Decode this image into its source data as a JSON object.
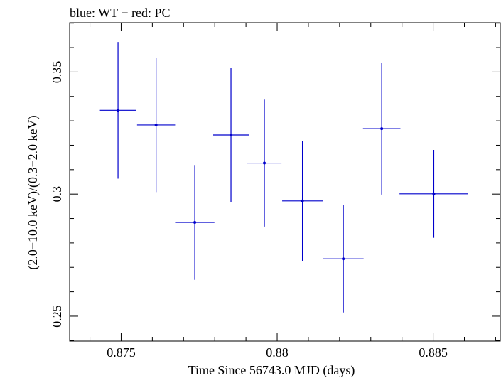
{
  "chart_data": {
    "type": "scatter",
    "title": "blue: WT − red: PC",
    "xlabel": "Time Since 56743.0 MJD (days)",
    "ylabel": "(2.0−10.0 keV)/(0.3−2.0 keV)",
    "xlim": [
      0.87335,
      0.88715
    ],
    "ylim": [
      0.2398,
      0.3702
    ],
    "x_ticks": [
      0.875,
      0.88,
      0.885
    ],
    "x_tick_labels": [
      "0.875",
      "0.88",
      "0.885"
    ],
    "y_ticks": [
      0.25,
      0.3,
      0.35
    ],
    "y_tick_labels": [
      "0.25",
      "0.3",
      "0.35"
    ],
    "grid": false,
    "colors": {
      "series": "#0000cc",
      "axes": "#000000"
    },
    "series": [
      {
        "points": [
          {
            "x": 0.8749,
            "y": 0.3343,
            "xerr": 0.00058,
            "yerr_lo": 0.028,
            "yerr_hi": 0.028
          },
          {
            "x": 0.87612,
            "y": 0.3283,
            "xerr": 0.00061,
            "yerr_lo": 0.0275,
            "yerr_hi": 0.0275
          },
          {
            "x": 0.87736,
            "y": 0.2884,
            "xerr": 0.00063,
            "yerr_lo": 0.0235,
            "yerr_hi": 0.0235
          },
          {
            "x": 0.87852,
            "y": 0.3242,
            "xerr": 0.00057,
            "yerr_lo": 0.0275,
            "yerr_hi": 0.0275
          },
          {
            "x": 0.87959,
            "y": 0.3127,
            "xerr": 0.00055,
            "yerr_lo": 0.026,
            "yerr_hi": 0.026
          },
          {
            "x": 0.88081,
            "y": 0.2972,
            "xerr": 0.00065,
            "yerr_lo": 0.0245,
            "yerr_hi": 0.0245
          },
          {
            "x": 0.88212,
            "y": 0.2735,
            "xerr": 0.00065,
            "yerr_lo": 0.022,
            "yerr_hi": 0.022
          },
          {
            "x": 0.88335,
            "y": 0.3268,
            "xerr": 0.0006,
            "yerr_lo": 0.027,
            "yerr_hi": 0.027
          },
          {
            "x": 0.88502,
            "y": 0.3001,
            "xerr": 0.0011,
            "yerr_lo": 0.018,
            "yerr_hi": 0.018
          }
        ]
      }
    ]
  }
}
